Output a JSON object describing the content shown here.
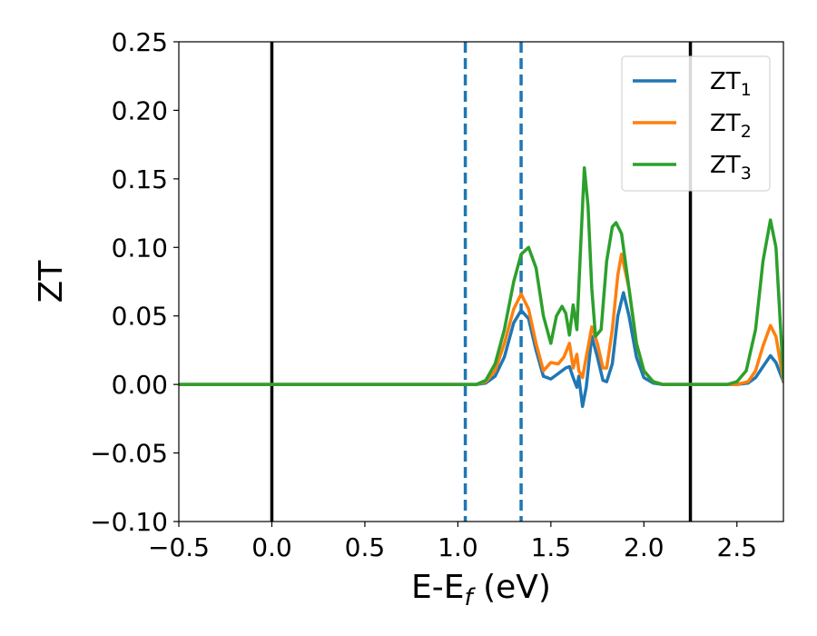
{
  "chart_data": {
    "type": "line",
    "xlabel": "E-E",
    "xlabel_sub": "f",
    "xlabel_unit": " (eV)",
    "ylabel": "ZT",
    "xlim": [
      -0.5,
      2.75
    ],
    "ylim": [
      -0.1,
      0.25
    ],
    "x_ticks": [
      "−0.5",
      "0.0",
      "0.5",
      "1.0",
      "1.5",
      "2.0",
      "2.5"
    ],
    "x_tick_values": [
      -0.5,
      0.0,
      0.5,
      1.0,
      1.5,
      2.0,
      2.5
    ],
    "y_ticks": [
      "−0.10",
      "−0.05",
      "0.00",
      "0.05",
      "0.10",
      "0.15",
      "0.20",
      "0.25"
    ],
    "y_tick_values": [
      -0.1,
      -0.05,
      0.0,
      0.05,
      0.1,
      0.15,
      0.2,
      0.25
    ],
    "grid": false,
    "legend_position": "top-right",
    "vertical_lines": [
      {
        "x": 0.0,
        "style": "solid",
        "color": "#000000"
      },
      {
        "x": 2.25,
        "style": "solid",
        "color": "#000000"
      },
      {
        "x": 1.04,
        "style": "dashed",
        "color": "#1f77b4"
      },
      {
        "x": 1.34,
        "style": "dashed",
        "color": "#1f77b4"
      }
    ],
    "series": [
      {
        "name": "ZT",
        "sub": "1",
        "color": "#1f77b4",
        "points": [
          [
            -0.5,
            0
          ],
          [
            1.1,
            0
          ],
          [
            1.15,
            0.001
          ],
          [
            1.2,
            0.006
          ],
          [
            1.25,
            0.02
          ],
          [
            1.3,
            0.045
          ],
          [
            1.34,
            0.054
          ],
          [
            1.38,
            0.048
          ],
          [
            1.42,
            0.025
          ],
          [
            1.46,
            0.006
          ],
          [
            1.5,
            0.004
          ],
          [
            1.54,
            0.008
          ],
          [
            1.58,
            0.012
          ],
          [
            1.6,
            0.013
          ],
          [
            1.62,
            0.005
          ],
          [
            1.64,
            -0.002
          ],
          [
            1.65,
            0.006
          ],
          [
            1.66,
            -0.005
          ],
          [
            1.67,
            -0.016
          ],
          [
            1.69,
            -0.002
          ],
          [
            1.72,
            0.035
          ],
          [
            1.75,
            0.02
          ],
          [
            1.78,
            0.003
          ],
          [
            1.8,
            0.002
          ],
          [
            1.83,
            0.015
          ],
          [
            1.86,
            0.05
          ],
          [
            1.89,
            0.067
          ],
          [
            1.92,
            0.05
          ],
          [
            1.96,
            0.02
          ],
          [
            2.0,
            0.005
          ],
          [
            2.05,
            0.001
          ],
          [
            2.1,
            0
          ],
          [
            2.5,
            0
          ],
          [
            2.56,
            0.001
          ],
          [
            2.6,
            0.005
          ],
          [
            2.64,
            0.013
          ],
          [
            2.68,
            0.021
          ],
          [
            2.71,
            0.016
          ],
          [
            2.75,
            0.002
          ]
        ]
      },
      {
        "name": "ZT",
        "sub": "2",
        "color": "#ff7f0e",
        "points": [
          [
            -0.5,
            0
          ],
          [
            1.1,
            0
          ],
          [
            1.15,
            0.002
          ],
          [
            1.2,
            0.01
          ],
          [
            1.25,
            0.03
          ],
          [
            1.3,
            0.055
          ],
          [
            1.34,
            0.066
          ],
          [
            1.38,
            0.055
          ],
          [
            1.42,
            0.03
          ],
          [
            1.46,
            0.01
          ],
          [
            1.5,
            0.016
          ],
          [
            1.54,
            0.015
          ],
          [
            1.57,
            0.02
          ],
          [
            1.6,
            0.03
          ],
          [
            1.62,
            0.012
          ],
          [
            1.64,
            0.022
          ],
          [
            1.65,
            0.01
          ],
          [
            1.67,
            0.005
          ],
          [
            1.69,
            0.02
          ],
          [
            1.72,
            0.042
          ],
          [
            1.75,
            0.03
          ],
          [
            1.78,
            0.012
          ],
          [
            1.8,
            0.012
          ],
          [
            1.83,
            0.04
          ],
          [
            1.86,
            0.08
          ],
          [
            1.88,
            0.095
          ],
          [
            1.92,
            0.07
          ],
          [
            1.96,
            0.03
          ],
          [
            2.0,
            0.01
          ],
          [
            2.05,
            0.002
          ],
          [
            2.1,
            0
          ],
          [
            2.5,
            0
          ],
          [
            2.56,
            0.002
          ],
          [
            2.6,
            0.01
          ],
          [
            2.64,
            0.028
          ],
          [
            2.68,
            0.043
          ],
          [
            2.71,
            0.035
          ],
          [
            2.75,
            0.003
          ]
        ]
      },
      {
        "name": "ZT",
        "sub": "3",
        "color": "#2ca02c",
        "points": [
          [
            -0.5,
            0
          ],
          [
            1.1,
            0
          ],
          [
            1.15,
            0.003
          ],
          [
            1.2,
            0.015
          ],
          [
            1.25,
            0.04
          ],
          [
            1.3,
            0.075
          ],
          [
            1.34,
            0.095
          ],
          [
            1.38,
            0.1
          ],
          [
            1.42,
            0.085
          ],
          [
            1.46,
            0.05
          ],
          [
            1.5,
            0.03
          ],
          [
            1.53,
            0.05
          ],
          [
            1.56,
            0.057
          ],
          [
            1.58,
            0.052
          ],
          [
            1.6,
            0.036
          ],
          [
            1.62,
            0.058
          ],
          [
            1.64,
            0.04
          ],
          [
            1.66,
            0.1
          ],
          [
            1.68,
            0.158
          ],
          [
            1.7,
            0.13
          ],
          [
            1.72,
            0.07
          ],
          [
            1.74,
            0.035
          ],
          [
            1.77,
            0.04
          ],
          [
            1.8,
            0.09
          ],
          [
            1.83,
            0.115
          ],
          [
            1.85,
            0.118
          ],
          [
            1.88,
            0.11
          ],
          [
            1.92,
            0.07
          ],
          [
            1.96,
            0.03
          ],
          [
            2.0,
            0.01
          ],
          [
            2.05,
            0.002
          ],
          [
            2.1,
            0
          ],
          [
            2.45,
            0
          ],
          [
            2.5,
            0.002
          ],
          [
            2.55,
            0.01
          ],
          [
            2.6,
            0.04
          ],
          [
            2.64,
            0.09
          ],
          [
            2.68,
            0.12
          ],
          [
            2.71,
            0.1
          ],
          [
            2.75,
            0.005
          ]
        ]
      }
    ]
  }
}
